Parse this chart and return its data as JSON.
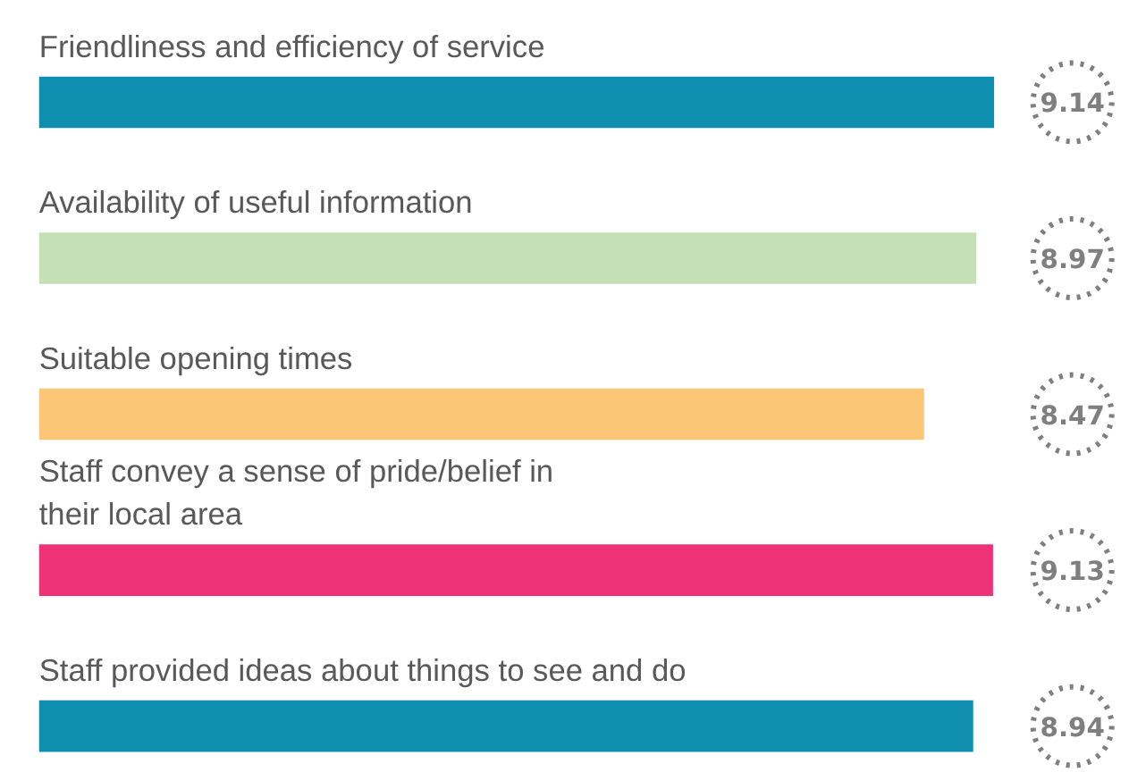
{
  "chart_data": {
    "type": "bar",
    "orientation": "horizontal",
    "categories": [
      "Friendliness and efficiency of service",
      "Availability of useful information",
      "Suitable opening times",
      "Staff convey a sense of pride/belief in\ntheir local area",
      "Staff provided ideas about things to see and do"
    ],
    "values": [
      9.14,
      8.97,
      8.47,
      9.13,
      8.94
    ],
    "colors": [
      "#0e8fb0",
      "#c5e0b4",
      "#fbc676",
      "#ee3277",
      "#0e8fb0"
    ],
    "tick_labels": false,
    "grid": false,
    "data_labels": true
  }
}
